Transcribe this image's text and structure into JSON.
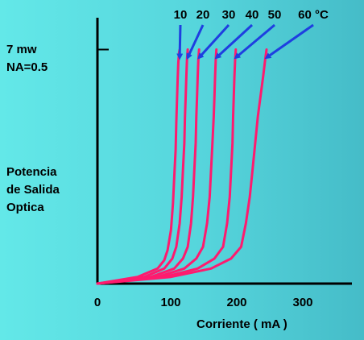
{
  "annotations": {
    "power_label": "7 mw",
    "na_label": "NA=0.5",
    "ylabel_lines": [
      "Potencia",
      "de Salida",
      "Optica"
    ]
  },
  "chart_data": {
    "type": "line",
    "xlabel": "Corriente  ( mA )",
    "ylabel": "Potencia de Salida Optica",
    "x_ticks": [
      "0",
      "100",
      "200",
      "300"
    ],
    "xlim": [
      0,
      350
    ],
    "temperature_labels": [
      "10",
      "20",
      "30",
      "40",
      "50",
      "60 °C"
    ],
    "series": [
      {
        "name": "10",
        "x": [
          0,
          60,
          90,
          100,
          105,
          110,
          113,
          115,
          117,
          118,
          119,
          120,
          121,
          122,
          123
        ],
        "y": [
          0,
          0.2,
          0.45,
          0.7,
          1.0,
          1.6,
          2.4,
          3.2,
          4.0,
          4.8,
          5.5,
          6.1,
          6.6,
          6.9,
          7.0
        ]
      },
      {
        "name": "20",
        "x": [
          0,
          70,
          100,
          112,
          118,
          123,
          126,
          128,
          130,
          131,
          132,
          133,
          134,
          135
        ],
        "y": [
          0,
          0.2,
          0.45,
          0.75,
          1.1,
          1.8,
          2.6,
          3.4,
          4.2,
          5.0,
          5.6,
          6.2,
          6.7,
          7.0
        ]
      },
      {
        "name": "30",
        "x": [
          0,
          80,
          115,
          128,
          135,
          140,
          143,
          145,
          147,
          148,
          149,
          150,
          151,
          152
        ],
        "y": [
          0,
          0.2,
          0.45,
          0.75,
          1.1,
          1.8,
          2.6,
          3.4,
          4.2,
          5.0,
          5.6,
          6.2,
          6.7,
          7.0
        ]
      },
      {
        "name": "40",
        "x": [
          0,
          90,
          130,
          148,
          158,
          164,
          168,
          170,
          172,
          174,
          175,
          176,
          177,
          178
        ],
        "y": [
          0,
          0.2,
          0.45,
          0.75,
          1.1,
          1.8,
          2.6,
          3.4,
          4.2,
          5.0,
          5.6,
          6.2,
          6.7,
          7.0
        ]
      },
      {
        "name": "50",
        "x": [
          0,
          100,
          150,
          175,
          188,
          194,
          198,
          200,
          202,
          203,
          204,
          205,
          206,
          207
        ],
        "y": [
          0,
          0.2,
          0.45,
          0.75,
          1.1,
          1.8,
          2.6,
          3.4,
          4.2,
          5.0,
          5.6,
          6.2,
          6.7,
          7.0
        ]
      },
      {
        "name": "60",
        "x": [
          0,
          110,
          170,
          200,
          215,
          222,
          228,
          232,
          236,
          240,
          244,
          248,
          251,
          253
        ],
        "y": [
          0,
          0.2,
          0.45,
          0.75,
          1.1,
          1.8,
          2.6,
          3.4,
          4.2,
          5.0,
          5.6,
          6.2,
          6.7,
          7.0
        ]
      }
    ],
    "y_marker_value": 7,
    "colors": {
      "series": "#ff1a6e",
      "arrows": "#1e3fe0",
      "axes": "#000000"
    }
  }
}
